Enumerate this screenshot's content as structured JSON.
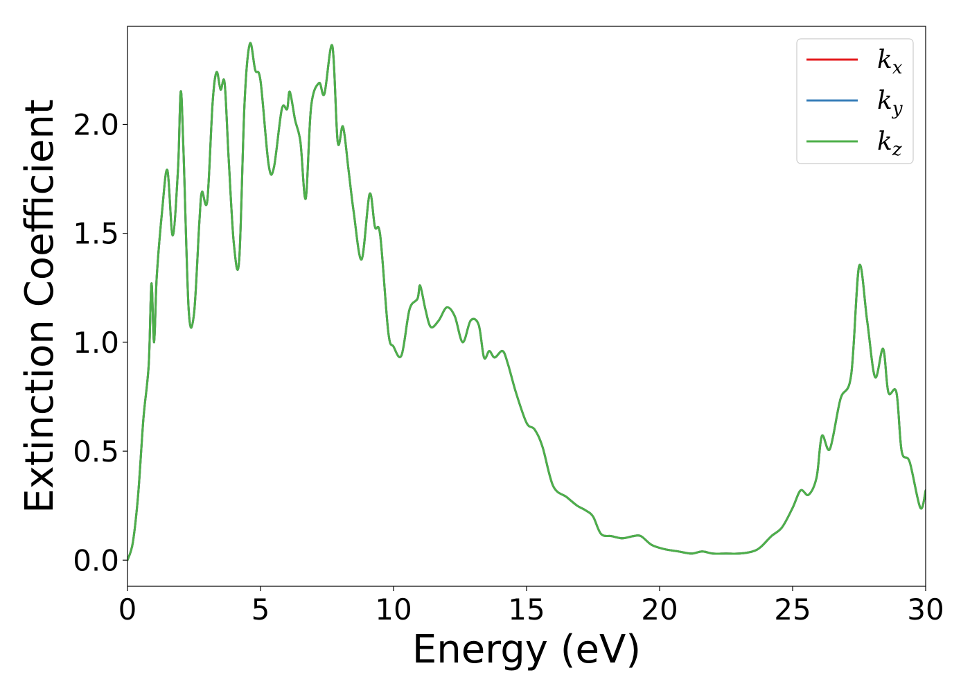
{
  "chart_data": {
    "type": "line",
    "title": "",
    "xlabel": "Energy (eV)",
    "ylabel": "Extinction Coefficient",
    "xlim": [
      0,
      30
    ],
    "ylim": [
      -0.12,
      2.45
    ],
    "xticks": [
      0,
      5,
      10,
      15,
      20,
      25,
      30
    ],
    "xtick_labels": [
      "0",
      "5",
      "10",
      "15",
      "20",
      "25",
      "30"
    ],
    "yticks": [
      0.0,
      0.5,
      1.0,
      1.5,
      2.0
    ],
    "ytick_labels": [
      "0.0",
      "0.5",
      "1.0",
      "1.5",
      "2.0"
    ],
    "grid": false,
    "legend_position": "top-right",
    "x": [
      0,
      0.2,
      0.4,
      0.6,
      0.8,
      0.9,
      1.0,
      1.1,
      1.3,
      1.5,
      1.7,
      1.9,
      2.0,
      2.1,
      2.3,
      2.5,
      2.7,
      2.8,
      3.0,
      3.2,
      3.35,
      3.5,
      3.65,
      3.8,
      4.0,
      4.2,
      4.4,
      4.6,
      4.8,
      5.0,
      5.3,
      5.5,
      5.8,
      6.0,
      6.1,
      6.3,
      6.5,
      6.7,
      6.9,
      7.2,
      7.4,
      7.7,
      7.9,
      8.1,
      8.3,
      8.5,
      8.8,
      9.1,
      9.3,
      9.5,
      9.8,
      10.0,
      10.3,
      10.6,
      10.9,
      11.0,
      11.2,
      11.4,
      11.7,
      12.0,
      12.3,
      12.6,
      12.9,
      13.2,
      13.4,
      13.6,
      13.8,
      14.1,
      14.3,
      14.6,
      15.0,
      15.3,
      15.6,
      16.0,
      16.5,
      16.9,
      17.2,
      17.5,
      17.8,
      18.2,
      18.6,
      19.0,
      19.3,
      19.7,
      20.2,
      20.7,
      21.2,
      21.6,
      22.0,
      22.5,
      23.0,
      23.5,
      23.8,
      24.2,
      24.6,
      25.0,
      25.3,
      25.6,
      25.9,
      26.1,
      26.4,
      26.8,
      27.2,
      27.5,
      27.8,
      28.1,
      28.4,
      28.6,
      28.9,
      29.1,
      29.4,
      29.8,
      30.0
    ],
    "series": [
      {
        "name": "k",
        "sub": "x",
        "color": "#e41a1c",
        "values": [
          0.0,
          0.08,
          0.3,
          0.65,
          0.9,
          1.27,
          1.0,
          1.3,
          1.6,
          1.79,
          1.49,
          1.8,
          2.15,
          1.9,
          1.15,
          1.13,
          1.55,
          1.69,
          1.65,
          2.1,
          2.24,
          2.16,
          2.19,
          1.85,
          1.45,
          1.38,
          2.1,
          2.37,
          2.25,
          2.2,
          1.82,
          1.8,
          2.07,
          2.07,
          2.15,
          2.02,
          1.92,
          1.66,
          2.08,
          2.19,
          2.14,
          2.36,
          1.92,
          1.99,
          1.8,
          1.6,
          1.38,
          1.68,
          1.53,
          1.49,
          1.05,
          0.98,
          0.94,
          1.15,
          1.2,
          1.26,
          1.15,
          1.07,
          1.1,
          1.16,
          1.12,
          1.0,
          1.1,
          1.08,
          0.93,
          0.96,
          0.93,
          0.96,
          0.9,
          0.77,
          0.63,
          0.6,
          0.52,
          0.34,
          0.29,
          0.25,
          0.23,
          0.2,
          0.12,
          0.11,
          0.1,
          0.11,
          0.11,
          0.07,
          0.05,
          0.04,
          0.03,
          0.04,
          0.03,
          0.03,
          0.03,
          0.04,
          0.06,
          0.11,
          0.15,
          0.24,
          0.32,
          0.3,
          0.38,
          0.57,
          0.51,
          0.74,
          0.85,
          1.35,
          1.1,
          0.84,
          0.97,
          0.77,
          0.77,
          0.5,
          0.45,
          0.24,
          0.32
        ]
      },
      {
        "name": "k",
        "sub": "y",
        "color": "#377eb8",
        "values": [
          0.0,
          0.08,
          0.3,
          0.65,
          0.9,
          1.27,
          1.0,
          1.3,
          1.6,
          1.79,
          1.49,
          1.8,
          2.15,
          1.9,
          1.15,
          1.13,
          1.55,
          1.69,
          1.65,
          2.1,
          2.24,
          2.16,
          2.19,
          1.85,
          1.45,
          1.38,
          2.1,
          2.37,
          2.25,
          2.2,
          1.82,
          1.8,
          2.07,
          2.07,
          2.15,
          2.02,
          1.92,
          1.66,
          2.08,
          2.19,
          2.14,
          2.36,
          1.92,
          1.99,
          1.8,
          1.6,
          1.38,
          1.68,
          1.53,
          1.49,
          1.05,
          0.98,
          0.94,
          1.15,
          1.2,
          1.26,
          1.15,
          1.07,
          1.1,
          1.16,
          1.12,
          1.0,
          1.1,
          1.08,
          0.93,
          0.96,
          0.93,
          0.96,
          0.9,
          0.77,
          0.63,
          0.6,
          0.52,
          0.34,
          0.29,
          0.25,
          0.23,
          0.2,
          0.12,
          0.11,
          0.1,
          0.11,
          0.11,
          0.07,
          0.05,
          0.04,
          0.03,
          0.04,
          0.03,
          0.03,
          0.03,
          0.04,
          0.06,
          0.11,
          0.15,
          0.24,
          0.32,
          0.3,
          0.38,
          0.57,
          0.51,
          0.74,
          0.85,
          1.35,
          1.1,
          0.84,
          0.97,
          0.77,
          0.77,
          0.5,
          0.45,
          0.24,
          0.32
        ]
      },
      {
        "name": "k",
        "sub": "z",
        "color": "#4daf4a",
        "values": [
          0.0,
          0.08,
          0.3,
          0.65,
          0.9,
          1.27,
          1.0,
          1.3,
          1.6,
          1.79,
          1.49,
          1.8,
          2.15,
          1.9,
          1.15,
          1.13,
          1.55,
          1.69,
          1.65,
          2.1,
          2.24,
          2.16,
          2.19,
          1.85,
          1.45,
          1.38,
          2.1,
          2.37,
          2.25,
          2.2,
          1.82,
          1.8,
          2.07,
          2.07,
          2.15,
          2.02,
          1.92,
          1.66,
          2.08,
          2.19,
          2.14,
          2.36,
          1.92,
          1.99,
          1.8,
          1.6,
          1.38,
          1.68,
          1.53,
          1.49,
          1.05,
          0.98,
          0.94,
          1.15,
          1.2,
          1.26,
          1.15,
          1.07,
          1.1,
          1.16,
          1.12,
          1.0,
          1.1,
          1.08,
          0.93,
          0.96,
          0.93,
          0.96,
          0.9,
          0.77,
          0.63,
          0.6,
          0.52,
          0.34,
          0.29,
          0.25,
          0.23,
          0.2,
          0.12,
          0.11,
          0.1,
          0.11,
          0.11,
          0.07,
          0.05,
          0.04,
          0.03,
          0.04,
          0.03,
          0.03,
          0.03,
          0.04,
          0.06,
          0.11,
          0.15,
          0.24,
          0.32,
          0.3,
          0.38,
          0.57,
          0.51,
          0.74,
          0.85,
          1.35,
          1.1,
          0.84,
          0.97,
          0.77,
          0.77,
          0.5,
          0.45,
          0.24,
          0.32
        ]
      }
    ]
  }
}
